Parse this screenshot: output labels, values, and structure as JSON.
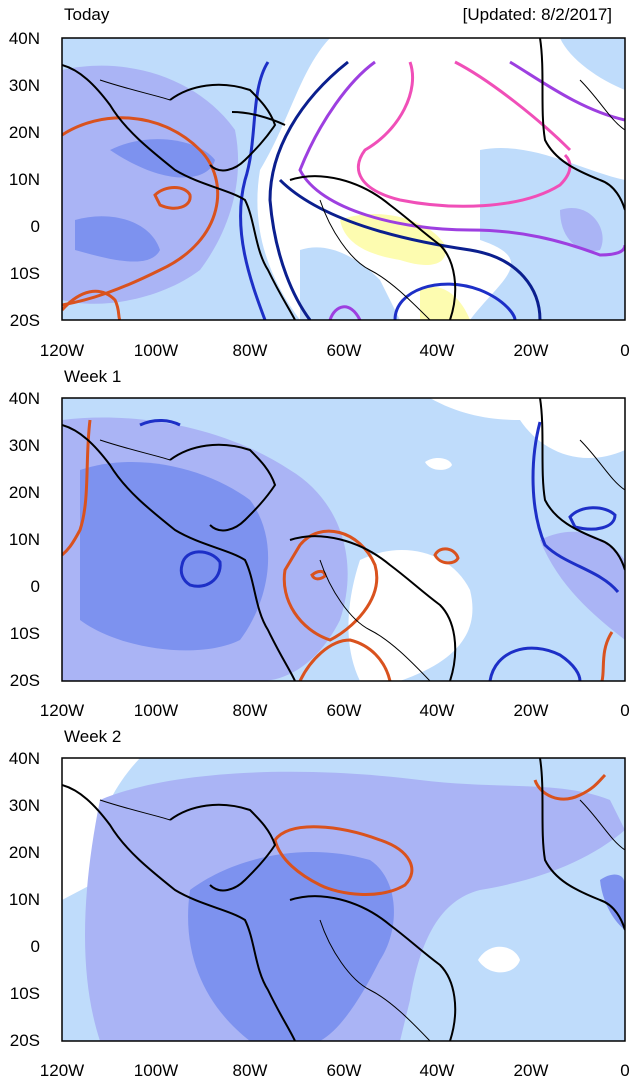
{
  "updated": "[Updated: 8/2/2017]",
  "lat_labels": [
    "40N",
    "30N",
    "20N",
    "10N",
    "0",
    "10S",
    "20S"
  ],
  "lon_labels": [
    "120W",
    "100W",
    "80W",
    "60W",
    "40W",
    "20W",
    "0"
  ],
  "panels": [
    {
      "title": "Today"
    },
    {
      "title": "Week 1"
    },
    {
      "title": "Week 2"
    }
  ],
  "colors": {
    "shade_light": "#bfdcfb",
    "shade_mid": "#aab4f5",
    "shade_dark": "#7d92ef",
    "shade_yellow": "#fdfcb0",
    "contour_orange": "#d9521e",
    "contour_blue": "#1d2fc7",
    "contour_navy": "#0b1f8e",
    "contour_purple": "#9d3fe0",
    "contour_pink": "#f04fb8"
  }
}
